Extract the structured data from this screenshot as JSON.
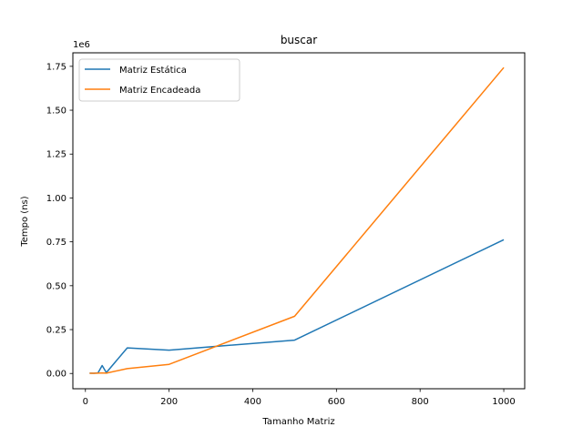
{
  "chart_data": {
    "type": "line",
    "title": "buscar",
    "xlabel": "Tamanho Matriz",
    "ylabel": "Tempo (ns)",
    "offset_text": "1e6",
    "xlim": [
      -30,
      1050
    ],
    "ylim": [
      -87000,
      1827000
    ],
    "xticks": [
      0,
      200,
      400,
      600,
      800,
      1000
    ],
    "xtick_labels": [
      "0",
      "200",
      "400",
      "600",
      "800",
      "1000"
    ],
    "yticks": [
      0,
      250000,
      500000,
      750000,
      1000000,
      1250000,
      1500000,
      1750000
    ],
    "ytick_labels": [
      "0.00",
      "0.25",
      "0.50",
      "0.75",
      "1.00",
      "1.25",
      "1.50",
      "1.75"
    ],
    "grid": false,
    "legend_position": "top-left",
    "series": [
      {
        "name": "Matriz Estática",
        "color": "#1f77b4",
        "x": [
          10,
          20,
          30,
          40,
          50,
          100,
          200,
          500,
          1000
        ],
        "y": [
          2000,
          1000,
          3000,
          45000,
          5000,
          146000,
          133000,
          190000,
          762000
        ]
      },
      {
        "name": "Matriz Encadeada",
        "color": "#ff7f0e",
        "x": [
          10,
          20,
          30,
          40,
          50,
          100,
          200,
          500,
          1000
        ],
        "y": [
          1000,
          1000,
          2000,
          3000,
          2000,
          28000,
          52000,
          326000,
          1743000
        ]
      }
    ]
  }
}
